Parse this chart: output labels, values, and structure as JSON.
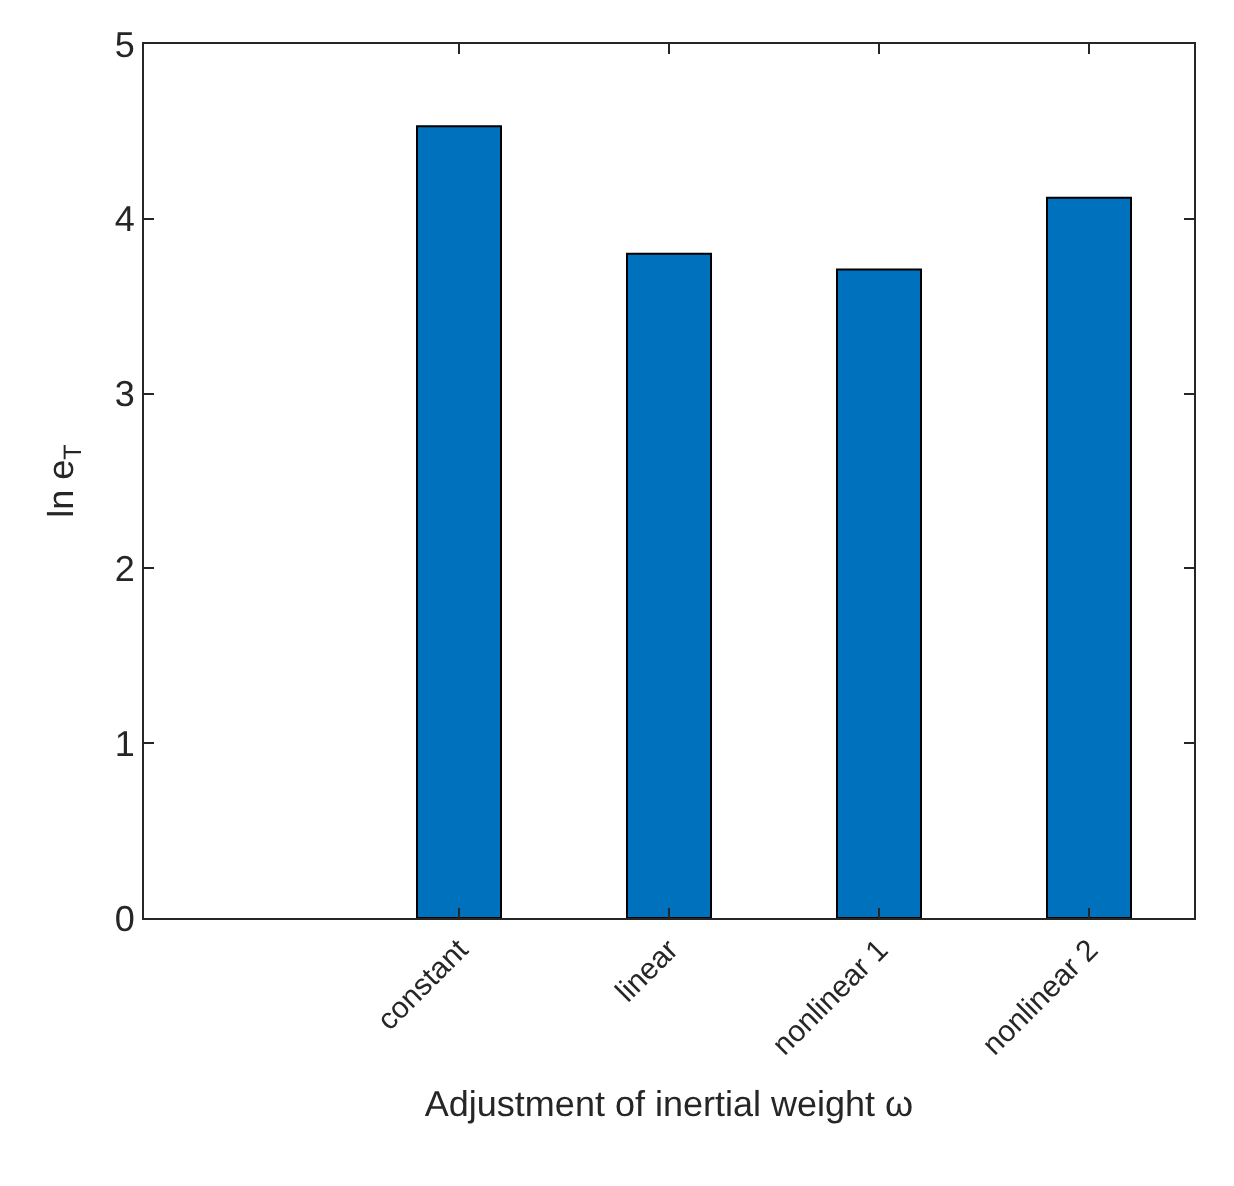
{
  "chart_data": {
    "type": "bar",
    "categories": [
      null,
      "constant",
      "linear",
      "nonlinear 1",
      "nonlinear 2"
    ],
    "values": [
      null,
      4.53,
      3.8,
      3.71,
      4.12
    ],
    "color": "#0072bd",
    "xlabel": "Adjustment of inertial weight ω",
    "ylabel": "ln e$_{T}$",
    "ylim": [
      0,
      5
    ],
    "yticks": [
      0,
      1,
      2,
      3,
      4,
      5
    ]
  }
}
